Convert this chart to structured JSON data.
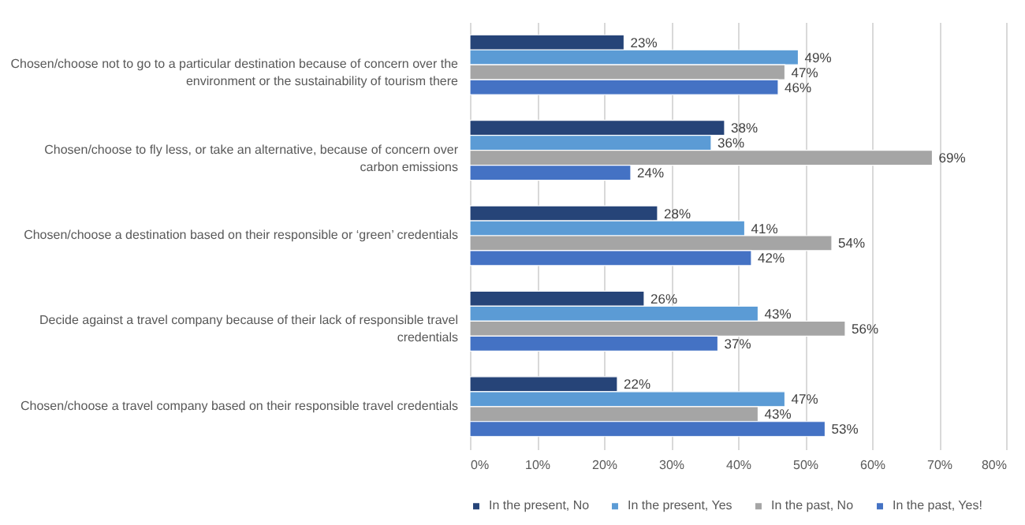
{
  "chart_data": {
    "type": "bar",
    "orientation": "horizontal",
    "categories": [
      "Chosen/choose not to go to a particular destination because of concern over the environment or the sustainability of tourism there",
      "Chosen/choose to fly less, or take an alternative, because of concern over carbon emissions",
      "Chosen/choose a destination based on their responsible or ‘green’ credentials",
      "Decide against a travel company because of their lack of responsible travel credentials",
      "Chosen/choose a travel company based on their responsible travel credentials"
    ],
    "series": [
      {
        "name": "In the present, No",
        "color": "#264478",
        "values": [
          23,
          38,
          28,
          26,
          22
        ],
        "value_labels": [
          "23%",
          "38%",
          "28%",
          "26%",
          "22%"
        ]
      },
      {
        "name": "In the present, Yes",
        "color": "#5b9bd5",
        "values": [
          49,
          36,
          41,
          43,
          47
        ],
        "value_labels": [
          "49%",
          "36%",
          "41%",
          "43%",
          "47%"
        ]
      },
      {
        "name": "In the past, No",
        "color": "#a5a5a5",
        "values": [
          47,
          69,
          54,
          56,
          43
        ],
        "value_labels": [
          "47%",
          "69%",
          "54%",
          "56%",
          "43%"
        ]
      },
      {
        "name": "In the past, Yes!",
        "color": "#4472c4",
        "values": [
          46,
          24,
          42,
          37,
          53
        ],
        "value_labels": [
          "46%",
          "24%",
          "42%",
          "37%",
          "53%"
        ]
      }
    ],
    "xlim": [
      0,
      80
    ],
    "xticks": [
      {
        "value": 0,
        "label": "0%"
      },
      {
        "value": 10,
        "label": "10%"
      },
      {
        "value": 20,
        "label": "20%"
      },
      {
        "value": 30,
        "label": "30%"
      },
      {
        "value": 40,
        "label": "40%"
      },
      {
        "value": 50,
        "label": "50%"
      },
      {
        "value": 60,
        "label": "60%"
      },
      {
        "value": 70,
        "label": "70%"
      },
      {
        "value": 80,
        "label": "80%"
      }
    ],
    "grid": "x",
    "legend": "bottom"
  }
}
